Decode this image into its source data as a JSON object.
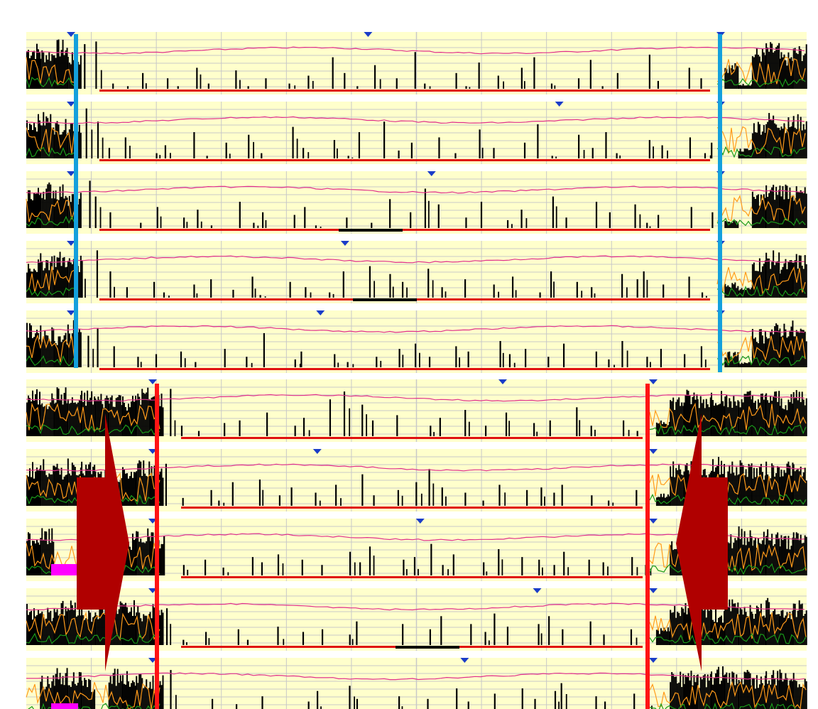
{
  "colors": {
    "panel_background": "#ffffcc",
    "gridline": "#c8c8c8",
    "activity_bars": "#000000",
    "trace_magenta": "#e0308c",
    "trace_orange": "#ff9a1a",
    "trace_green": "#1a9a1a",
    "baseline_red": "#e01010",
    "baseline_black": "#000000",
    "marker_blue": "#1a3cc8",
    "boundary_blue": "#14a0dc",
    "boundary_red": "#ff1414",
    "arrow_darkred": "#b00000",
    "block_magenta": "#ff00ff"
  },
  "icons": [
    "marker-triangle-icon",
    "arrow-right-icon",
    "arrow-left-icon"
  ],
  "chart_data": [
    {
      "type": "bar",
      "name": "upper-group",
      "rows": 5,
      "row_activity": [
        [
          0.9,
          0.8,
          0.95,
          0.7,
          0.85,
          0.9,
          0.1,
          0.05,
          0.3,
          0.0,
          0.2,
          0.05,
          0.4,
          0.1,
          0.0,
          0.35,
          0.05,
          0.2,
          0.0,
          0.1,
          0.25,
          0.0,
          0.6,
          0.3,
          0.05,
          0.45,
          0.0,
          0.2,
          0.7,
          0.1,
          0.0,
          0.3,
          0.05,
          0.5,
          0.25,
          0.0,
          0.4,
          0.6,
          0.1,
          0.0,
          0.2,
          0.55,
          0.05,
          0.3,
          0.0,
          0.65,
          0.15,
          0.0,
          0.4,
          0.2,
          0.0,
          0.5,
          0.1,
          0.8,
          0.9,
          0.7,
          0.85
        ],
        [
          0.85,
          0.9,
          0.75,
          0.8,
          0.95,
          0.7,
          0.2,
          0.4,
          0.0,
          0.1,
          0.25,
          0.0,
          0.5,
          0.05,
          0.3,
          0.0,
          0.45,
          0.1,
          0.0,
          0.6,
          0.2,
          0.0,
          0.35,
          0.05,
          0.5,
          0.0,
          0.7,
          0.15,
          0.3,
          0.0,
          0.4,
          0.1,
          0.0,
          0.55,
          0.2,
          0.0,
          0.3,
          0.65,
          0.05,
          0.0,
          0.45,
          0.2,
          0.5,
          0.1,
          0.0,
          0.35,
          0.25,
          0.0,
          0.4,
          0.1,
          0.3,
          0.0,
          0.2,
          0.75,
          0.9,
          0.8,
          0.85
        ],
        [
          0.8,
          0.9,
          0.85,
          0.7,
          0.9,
          0.6,
          0.3,
          0.0,
          0.1,
          0.4,
          0.0,
          0.2,
          0.35,
          0.05,
          0.0,
          0.5,
          0.1,
          0.3,
          0.0,
          0.25,
          0.4,
          0.05,
          0.0,
          0.2,
          0.0,
          0.1,
          0.55,
          0.0,
          0.3,
          0.75,
          0.45,
          0.0,
          0.2,
          0.5,
          0.0,
          0.15,
          0.35,
          0.0,
          0.6,
          0.2,
          0.0,
          0.5,
          0.3,
          0.0,
          0.45,
          0.1,
          0.25,
          0.0,
          0.4,
          0.0,
          0.3,
          0.15,
          0.0,
          0.7,
          0.85,
          0.9,
          0.8
        ],
        [
          0.75,
          0.85,
          0.9,
          0.8,
          0.7,
          0.9,
          0.5,
          0.2,
          0.0,
          0.3,
          0.1,
          0.0,
          0.25,
          0.35,
          0.0,
          0.15,
          0.4,
          0.05,
          0.0,
          0.3,
          0.2,
          0.0,
          0.1,
          0.5,
          0.0,
          0.6,
          0.45,
          0.3,
          0.0,
          0.55,
          0.2,
          0.0,
          0.35,
          0.0,
          0.25,
          0.4,
          0.0,
          0.1,
          0.5,
          0.0,
          0.3,
          0.2,
          0.0,
          0.45,
          0.35,
          0.5,
          0.25,
          0.0,
          0.4,
          0.1,
          0.0,
          0.3,
          0.2,
          0.8,
          0.9,
          0.75,
          0.85
        ],
        [
          0.85,
          0.8,
          0.7,
          0.9,
          0.6,
          0.75,
          0.4,
          0.0,
          0.2,
          0.25,
          0.0,
          0.3,
          0.1,
          0.0,
          0.35,
          0.0,
          0.2,
          0.65,
          0.0,
          0.15,
          0.3,
          0.0,
          0.25,
          0.1,
          0.0,
          0.2,
          0.0,
          0.35,
          0.45,
          0.2,
          0.0,
          0.4,
          0.3,
          0.0,
          0.5,
          0.25,
          0.35,
          0.0,
          0.2,
          0.45,
          0.0,
          0.3,
          0.15,
          0.5,
          0.0,
          0.2,
          0.35,
          0.0,
          0.25,
          0.4,
          0.0,
          0.3,
          0.1,
          0.75,
          0.85,
          0.9,
          0.8
        ]
      ]
    },
    {
      "type": "bar",
      "name": "lower-group",
      "rows": 5,
      "row_activity": [
        [
          0.9,
          0.85,
          0.95,
          0.8,
          0.9,
          0.85,
          0.9,
          0.8,
          0.95,
          0.85,
          0.9,
          0.2,
          0.1,
          0.0,
          0.25,
          0.3,
          0.0,
          0.45,
          0.0,
          0.2,
          0.35,
          0.0,
          0.7,
          0.85,
          0.6,
          0.3,
          0.0,
          0.4,
          0.0,
          0.2,
          0.35,
          0.0,
          0.5,
          0.2,
          0.0,
          0.45,
          0.0,
          0.25,
          0.3,
          0.0,
          0.55,
          0.2,
          0.0,
          0.3,
          0.1,
          0.0,
          0.35,
          0.8,
          0.9,
          0.85,
          0.95,
          0.8,
          0.9,
          0.85,
          0.9,
          0.8,
          0.95
        ],
        [
          0.85,
          0.9,
          0.8,
          0.95,
          0.85,
          0.7,
          0.6,
          0.75,
          0.9,
          0.85,
          0.8,
          0.15,
          0.0,
          0.3,
          0.1,
          0.45,
          0.0,
          0.5,
          0.2,
          0.35,
          0.0,
          0.25,
          0.4,
          0.0,
          0.6,
          0.2,
          0.0,
          0.3,
          0.45,
          0.7,
          0.35,
          0.0,
          0.25,
          0.1,
          0.4,
          0.0,
          0.3,
          0.35,
          0.25,
          0.4,
          0.0,
          0.2,
          0.1,
          0.0,
          0.3,
          0.0,
          0.25,
          0.85,
          0.9,
          0.8,
          0.95,
          0.85,
          0.9,
          0.8,
          0.85,
          0.9,
          0.8
        ],
        [
          0.85,
          0.9,
          0.0,
          0.0,
          0.0,
          0.0,
          0.6,
          0.8,
          0.9,
          0.85,
          0.75,
          0.2,
          0.0,
          0.3,
          0.15,
          0.0,
          0.35,
          0.25,
          0.4,
          0.0,
          0.3,
          0.2,
          0.0,
          0.45,
          0.25,
          0.55,
          0.0,
          0.3,
          0.35,
          0.6,
          0.2,
          0.4,
          0.0,
          0.25,
          0.5,
          0.0,
          0.35,
          0.3,
          0.2,
          0.45,
          0.0,
          0.3,
          0.25,
          0.0,
          0.35,
          0.2,
          0.0,
          0.8,
          0.9,
          0.85,
          0.9,
          0.8,
          0.95,
          0.85,
          0.9,
          0.8,
          0.85
        ],
        [
          0.8,
          0.75,
          0.85,
          0.9,
          0.7,
          0.8,
          0.85,
          0.9,
          0.75,
          0.8,
          0.7,
          0.1,
          0.0,
          0.25,
          0.0,
          0.3,
          0.1,
          0.0,
          0.35,
          0.0,
          0.25,
          0.3,
          0.0,
          0.2,
          0.45,
          0.0,
          0.0,
          0.4,
          0.0,
          0.3,
          0.55,
          0.0,
          0.4,
          0.25,
          0.6,
          0.35,
          0.0,
          0.4,
          0.55,
          0.3,
          0.0,
          0.45,
          0.2,
          0.0,
          0.3,
          0.0,
          0.35,
          0.75,
          0.85,
          0.8,
          0.7,
          0.9,
          0.85,
          0.8,
          0.9,
          0.75,
          0.85
        ],
        [
          0.0,
          0.8,
          0.9,
          0.85,
          0.7,
          0.0,
          0.9,
          0.85,
          0.8,
          0.75,
          0.85,
          0.1,
          0.0,
          0.3,
          0.0,
          0.2,
          0.0,
          0.35,
          0.1,
          0.0,
          0.25,
          0.45,
          0.0,
          0.55,
          0.3,
          0.0,
          0.0,
          0.35,
          0.0,
          0.3,
          0.0,
          0.5,
          0.25,
          0.0,
          0.4,
          0.0,
          0.5,
          0.3,
          0.45,
          0.6,
          0.0,
          0.35,
          0.25,
          0.0,
          0.4,
          0.3,
          0.0,
          0.85,
          0.9,
          0.8,
          0.95,
          0.85,
          0.9,
          0.8,
          0.85,
          0.9,
          0.8
        ]
      ]
    }
  ]
}
